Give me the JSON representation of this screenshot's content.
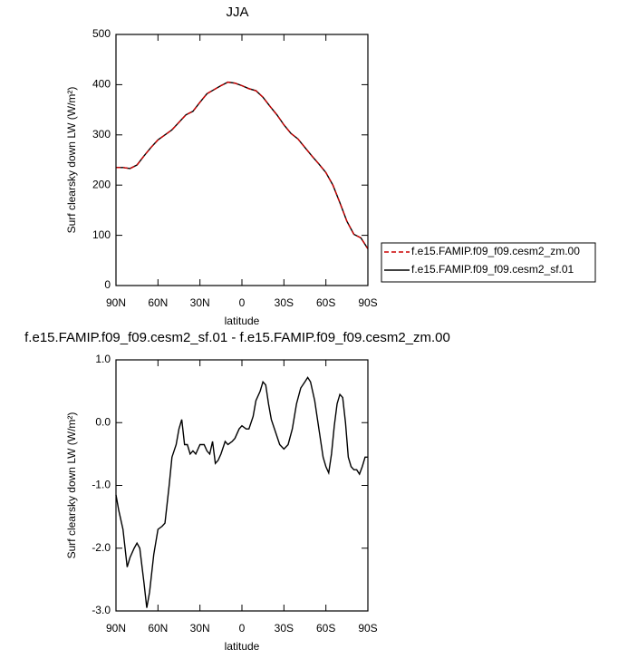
{
  "chart_data": [
    {
      "type": "line",
      "title": "JJA",
      "xlabel": "latitude",
      "ylabel": "Surf clearsky down LW (W/m²)",
      "x": [
        90,
        85,
        80,
        75,
        70,
        65,
        60,
        55,
        50,
        45,
        40,
        35,
        30,
        25,
        20,
        15,
        10,
        5,
        0,
        -5,
        -10,
        -15,
        -20,
        -25,
        -30,
        -35,
        -40,
        -45,
        -50,
        -55,
        -60,
        -65,
        -70,
        -75,
        -80,
        -85,
        -90
      ],
      "series": [
        {
          "name": "f.e15.FAMIP.f09_f09.cesm2_zm.00",
          "color": "#cc0000",
          "linestyle": "dashed",
          "values": [
            235,
            235,
            233,
            240,
            258,
            275,
            290,
            300,
            310,
            325,
            340,
            347,
            365,
            382,
            390,
            398,
            405,
            403,
            398,
            392,
            388,
            375,
            357,
            340,
            320,
            303,
            292,
            275,
            258,
            242,
            225,
            200,
            165,
            128,
            102,
            95,
            73
          ]
        },
        {
          "name": "f.e15.FAMIP.f09_f09.cesm2_sf.01",
          "color": "#000000",
          "linestyle": "solid",
          "values": [
            235,
            235,
            233,
            240,
            258,
            275,
            290,
            300,
            310,
            325,
            340,
            347,
            365,
            382,
            390,
            398,
            405,
            403,
            398,
            392,
            388,
            375,
            357,
            340,
            320,
            303,
            292,
            275,
            258,
            242,
            225,
            200,
            165,
            128,
            102,
            95,
            73
          ]
        }
      ],
      "xlim": [
        90,
        -90
      ],
      "xticks": [
        {
          "value": 90,
          "label": "90N"
        },
        {
          "value": 60,
          "label": "60N"
        },
        {
          "value": 30,
          "label": "30N"
        },
        0,
        {
          "value": -30,
          "label": "30S"
        },
        {
          "value": -60,
          "label": "60S"
        },
        {
          "value": -90,
          "label": "90S"
        }
      ],
      "ylim": [
        0,
        500
      ],
      "yticks": [
        0,
        100,
        200,
        300,
        400,
        500
      ],
      "legend": "right"
    },
    {
      "type": "line",
      "title": "f.e15.FAMIP.f09_f09.cesm2_sf.01 - f.e15.FAMIP.f09_f09.cesm2_zm.00",
      "xlabel": "latitude",
      "ylabel": "Surf clearsky down LW (W/m²)",
      "x": [
        90,
        88,
        85,
        82,
        80,
        77,
        75,
        73,
        70,
        68,
        66,
        63,
        60,
        57,
        55,
        52,
        50,
        47,
        45,
        43,
        41,
        39,
        37,
        35,
        33,
        30,
        27,
        25,
        23,
        21,
        19,
        17,
        15,
        12,
        10,
        7,
        5,
        2,
        0,
        -3,
        -5,
        -8,
        -10,
        -13,
        -15,
        -17,
        -19,
        -21,
        -24,
        -27,
        -30,
        -33,
        -36,
        -39,
        -42,
        -45,
        -47,
        -49,
        -52,
        -55,
        -58,
        -60,
        -62,
        -64,
        -66,
        -68,
        -70,
        -72,
        -74,
        -76,
        -78,
        -80,
        -82,
        -84,
        -86,
        -88,
        -90
      ],
      "values": [
        -1.15,
        -1.4,
        -1.7,
        -2.3,
        -2.15,
        -2.0,
        -1.92,
        -2.0,
        -2.55,
        -2.95,
        -2.7,
        -2.1,
        -1.7,
        -1.65,
        -1.6,
        -1.0,
        -0.55,
        -0.35,
        -0.1,
        0.05,
        -0.35,
        -0.35,
        -0.5,
        -0.45,
        -0.5,
        -0.35,
        -0.35,
        -0.45,
        -0.5,
        -0.3,
        -0.65,
        -0.6,
        -0.5,
        -0.3,
        -0.35,
        -0.3,
        -0.25,
        -0.1,
        -0.05,
        -0.1,
        -0.1,
        0.1,
        0.35,
        0.5,
        0.65,
        0.6,
        0.3,
        0.05,
        -0.15,
        -0.35,
        -0.42,
        -0.35,
        -0.1,
        0.3,
        0.55,
        0.65,
        0.72,
        0.65,
        0.35,
        -0.1,
        -0.55,
        -0.7,
        -0.8,
        -0.5,
        -0.05,
        0.3,
        0.45,
        0.4,
        0.0,
        -0.55,
        -0.7,
        -0.75,
        -0.75,
        -0.82,
        -0.7,
        -0.55,
        -0.55
      ],
      "color": "#000000",
      "xlim": [
        90,
        -90
      ],
      "xticks": [
        {
          "value": 90,
          "label": "90N"
        },
        {
          "value": 60,
          "label": "60N"
        },
        {
          "value": 30,
          "label": "30N"
        },
        0,
        {
          "value": -30,
          "label": "30S"
        },
        {
          "value": -60,
          "label": "60S"
        },
        {
          "value": -90,
          "label": "90S"
        }
      ],
      "ylim": [
        -3,
        1
      ],
      "yticks": [
        {
          "value": -3,
          "label": "-3.0"
        },
        {
          "value": -2,
          "label": "-2.0"
        },
        {
          "value": -1,
          "label": "-1.0"
        },
        {
          "value": 0,
          "label": "0.0"
        },
        {
          "value": 1,
          "label": "1.0"
        }
      ]
    }
  ]
}
